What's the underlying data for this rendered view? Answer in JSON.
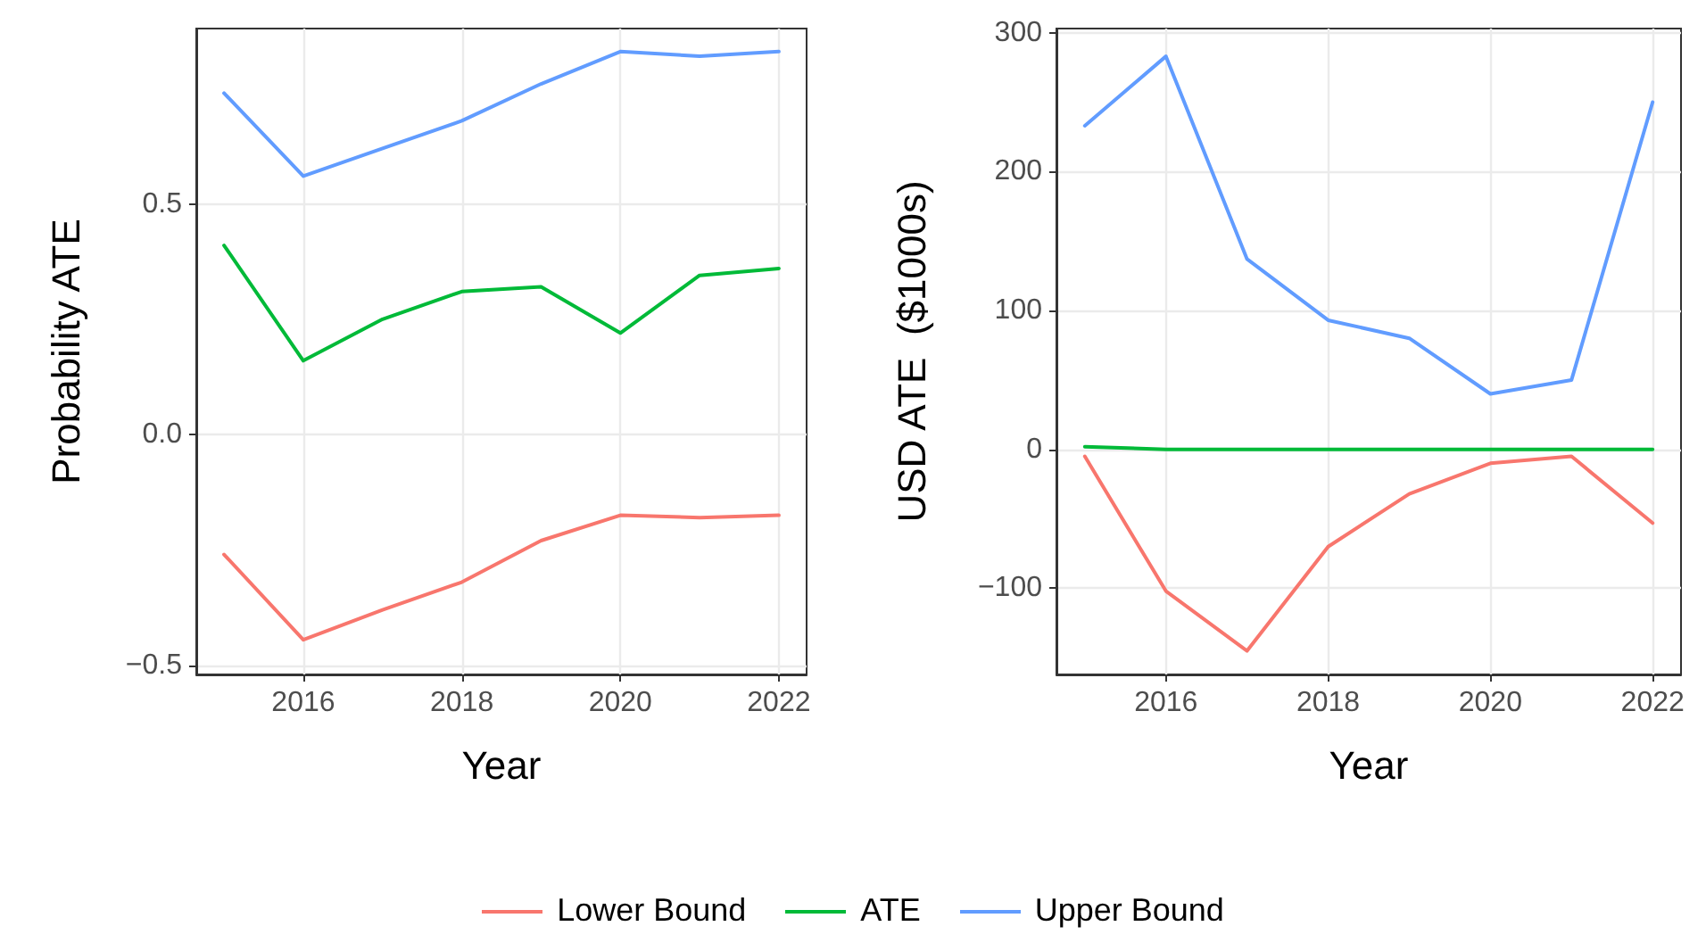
{
  "chart_data": [
    {
      "type": "line",
      "xlabel": "Year",
      "ylabel": "Probability ATE",
      "x": [
        2015,
        2016,
        2017,
        2018,
        2019,
        2020,
        2021,
        2022
      ],
      "xlim": [
        2014.65,
        2022.35
      ],
      "xticks": [
        2016,
        2018,
        2020,
        2022
      ],
      "ylim": [
        -0.52,
        0.88
      ],
      "yticks": [
        {
          "value": -0.5,
          "label": "−0.5"
        },
        {
          "value": 0,
          "label": "0.0"
        },
        0.5
      ],
      "grid": true,
      "legend": "bottom",
      "line_style": "solid",
      "marker": "none",
      "series": [
        {
          "name": "Lower Bound",
          "color": "#f8766d",
          "values": [
            -0.26,
            -0.445,
            -0.38,
            -0.32,
            -0.23,
            -0.175,
            -0.18,
            -0.175
          ]
        },
        {
          "name": "ATE",
          "color": "#00ba38",
          "values": [
            0.41,
            0.16,
            0.25,
            0.31,
            0.32,
            0.22,
            0.345,
            0.36
          ]
        },
        {
          "name": "Upper Bound",
          "color": "#619cff",
          "values": [
            0.74,
            0.56,
            0.62,
            0.68,
            0.76,
            0.83,
            0.82,
            0.83
          ]
        }
      ]
    },
    {
      "type": "line",
      "xlabel": "Year",
      "ylabel": "USD ATE  ($1000s)",
      "x": [
        2015,
        2016,
        2017,
        2018,
        2019,
        2020,
        2021,
        2022
      ],
      "xlim": [
        2014.65,
        2022.35
      ],
      "xticks": [
        2016,
        2018,
        2020,
        2022
      ],
      "ylim": [
        -162,
        303
      ],
      "yticks": [
        {
          "value": -100,
          "label": "−100"
        },
        0,
        100,
        200,
        300
      ],
      "grid": true,
      "legend": "bottom",
      "line_style": "solid",
      "marker": "none",
      "series": [
        {
          "name": "Lower Bound",
          "color": "#f8766d",
          "values": [
            -5,
            -102,
            -145,
            -70,
            -32,
            -10,
            -5,
            -53
          ]
        },
        {
          "name": "ATE",
          "color": "#00ba38",
          "values": [
            2,
            0,
            0,
            0,
            0,
            0,
            0,
            0
          ]
        },
        {
          "name": "Upper Bound",
          "color": "#619cff",
          "values": [
            233,
            283,
            137,
            93,
            80,
            40,
            50,
            250
          ]
        }
      ]
    }
  ]
}
